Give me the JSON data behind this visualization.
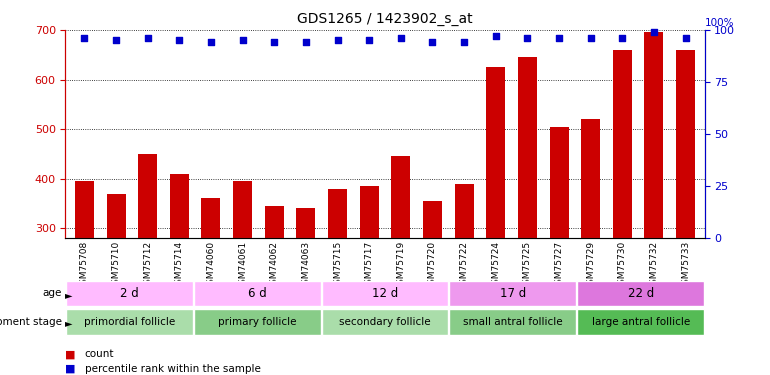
{
  "title": "GDS1265 / 1423902_s_at",
  "samples": [
    "GSM75708",
    "GSM75710",
    "GSM75712",
    "GSM75714",
    "GSM74060",
    "GSM74061",
    "GSM74062",
    "GSM74063",
    "GSM75715",
    "GSM75717",
    "GSM75719",
    "GSM75720",
    "GSM75722",
    "GSM75724",
    "GSM75725",
    "GSM75727",
    "GSM75729",
    "GSM75730",
    "GSM75732",
    "GSM75733"
  ],
  "counts": [
    395,
    370,
    450,
    410,
    360,
    395,
    345,
    340,
    380,
    385,
    445,
    355,
    390,
    625,
    645,
    505,
    520,
    660,
    695,
    660
  ],
  "percentile": [
    96,
    95,
    96,
    95,
    94,
    95,
    94,
    94,
    95,
    95,
    96,
    94,
    94,
    97,
    96,
    96,
    96,
    96,
    99,
    96
  ],
  "ylim_left": [
    280,
    700
  ],
  "ylim_right": [
    0,
    100
  ],
  "yticks_left": [
    300,
    400,
    500,
    600,
    700
  ],
  "yticks_right": [
    0,
    25,
    50,
    75,
    100
  ],
  "bar_color": "#cc0000",
  "dot_color": "#0000cc",
  "groups": [
    {
      "label": "primordial follicle",
      "age": "2 d",
      "start": 0,
      "end": 4,
      "stage_color": "#aaddaa",
      "age_color": "#ffbbff"
    },
    {
      "label": "primary follicle",
      "age": "6 d",
      "start": 4,
      "end": 8,
      "stage_color": "#88cc88",
      "age_color": "#ffbbff"
    },
    {
      "label": "secondary follicle",
      "age": "12 d",
      "start": 8,
      "end": 12,
      "stage_color": "#aaddaa",
      "age_color": "#ffbbff"
    },
    {
      "label": "small antral follicle",
      "age": "17 d",
      "start": 12,
      "end": 16,
      "stage_color": "#88cc88",
      "age_color": "#ee99ee"
    },
    {
      "label": "large antral follicle",
      "age": "22 d",
      "start": 16,
      "end": 20,
      "stage_color": "#55bb55",
      "age_color": "#dd77dd"
    }
  ],
  "xlabel_dev": "development stage",
  "xlabel_age": "age",
  "legend_count": "count",
  "legend_pct": "percentile rank within the sample",
  "bg_color": "#ffffff"
}
